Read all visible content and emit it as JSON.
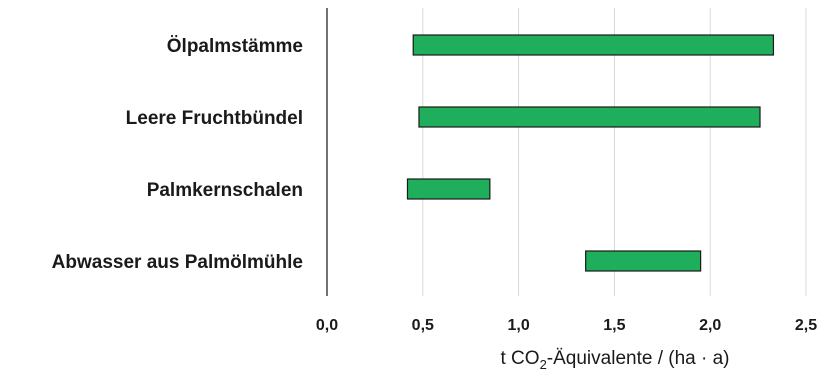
{
  "chart_data": {
    "type": "bar",
    "orientation": "horizontal",
    "floating": true,
    "categories": [
      "Ölpalmstämme",
      "Leere Fruchtbündel",
      "Palmkernschalen",
      "Abwasser aus Palmölmühle"
    ],
    "series": [
      {
        "ranges": [
          [
            0.45,
            2.33
          ],
          [
            0.48,
            2.26
          ],
          [
            0.42,
            0.85
          ],
          [
            1.35,
            1.95
          ]
        ]
      }
    ],
    "xlim": [
      0,
      2.5
    ],
    "xticks": [
      "0,0",
      "0,5",
      "1,0",
      "1,5",
      "2,0",
      "2,5"
    ],
    "xlabel": {
      "prefix": "t CO",
      "subscript": "2",
      "suffix": "-Äquivalente / (ha · a)"
    },
    "grid": "vertical",
    "legend": "none",
    "bar_color": "#1fae5c"
  }
}
